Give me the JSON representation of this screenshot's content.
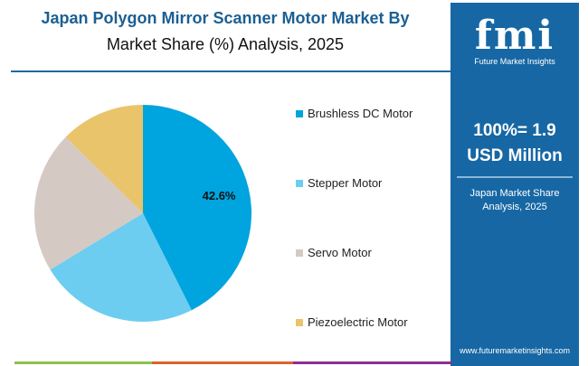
{
  "title_line1": "Japan Polygon Mirror Scanner Motor Market By",
  "title_line2": "Market Share (%) Analysis, 2025",
  "chart_data": {
    "type": "pie",
    "categories": [
      "Brushless DC Motor",
      "Stepper Motor",
      "Servo Motor",
      "Piezoelectric Motor"
    ],
    "values": [
      42.6,
      23.7,
      21.1,
      12.6
    ],
    "colors": [
      "#00a4de",
      "#6ccdf0",
      "#d5c9c4",
      "#e9c46a"
    ],
    "data_labels": [
      "42.6%",
      "",
      "",
      ""
    ],
    "legend_position": "right",
    "start_angle": "top, clockwise"
  },
  "panel": {
    "logo_text": "fmi",
    "logo_subtitle": "Future Market Insights",
    "total_line1": "100%= 1.9",
    "total_line2": "USD Million",
    "subtitle_line1": "Japan Market Share",
    "subtitle_line2": "Analysis, 2025",
    "url": "www.futuremarketinsights.com",
    "color": "#1667a4"
  },
  "bottom_bars": [
    "#8bc34a",
    "#e0602f",
    "#8e2f8f"
  ]
}
